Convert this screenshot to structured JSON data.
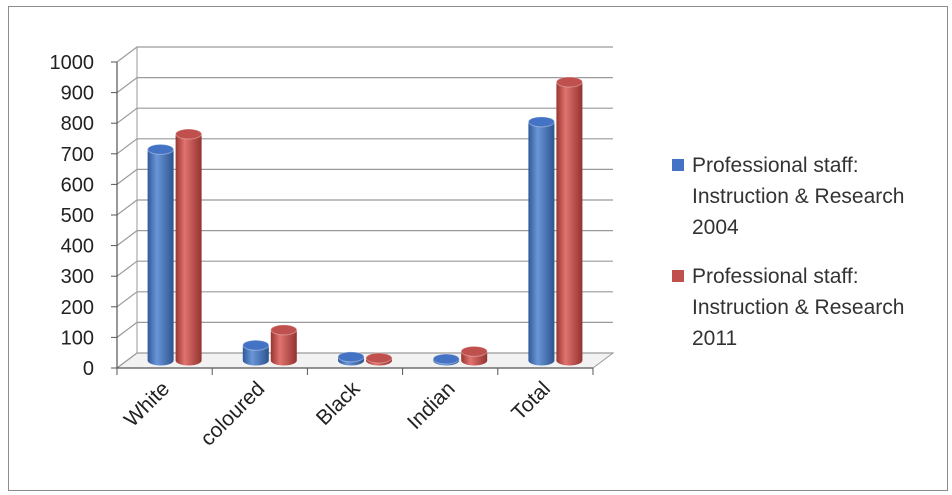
{
  "chart_data": {
    "type": "bar",
    "style": "3d-clustered-cylinder",
    "categories": [
      "White",
      "coloured",
      "Black",
      "Indian",
      "Total"
    ],
    "series": [
      {
        "name": "Professional staff:\nInstruction & Research\n2004",
        "color": "#4472c4",
        "values": [
          690,
          50,
          12,
          5,
          780
        ]
      },
      {
        "name": "Professional staff:\nInstruction & Research\n2011",
        "color": "#c0504d",
        "values": [
          740,
          100,
          8,
          30,
          910
        ]
      }
    ],
    "y_ticks": [
      "0",
      "100",
      "200",
      "300",
      "400",
      "500",
      "600",
      "700",
      "800",
      "900",
      "1000"
    ],
    "ylim": [
      0,
      1000
    ],
    "grid": true,
    "legend_position": "right"
  }
}
